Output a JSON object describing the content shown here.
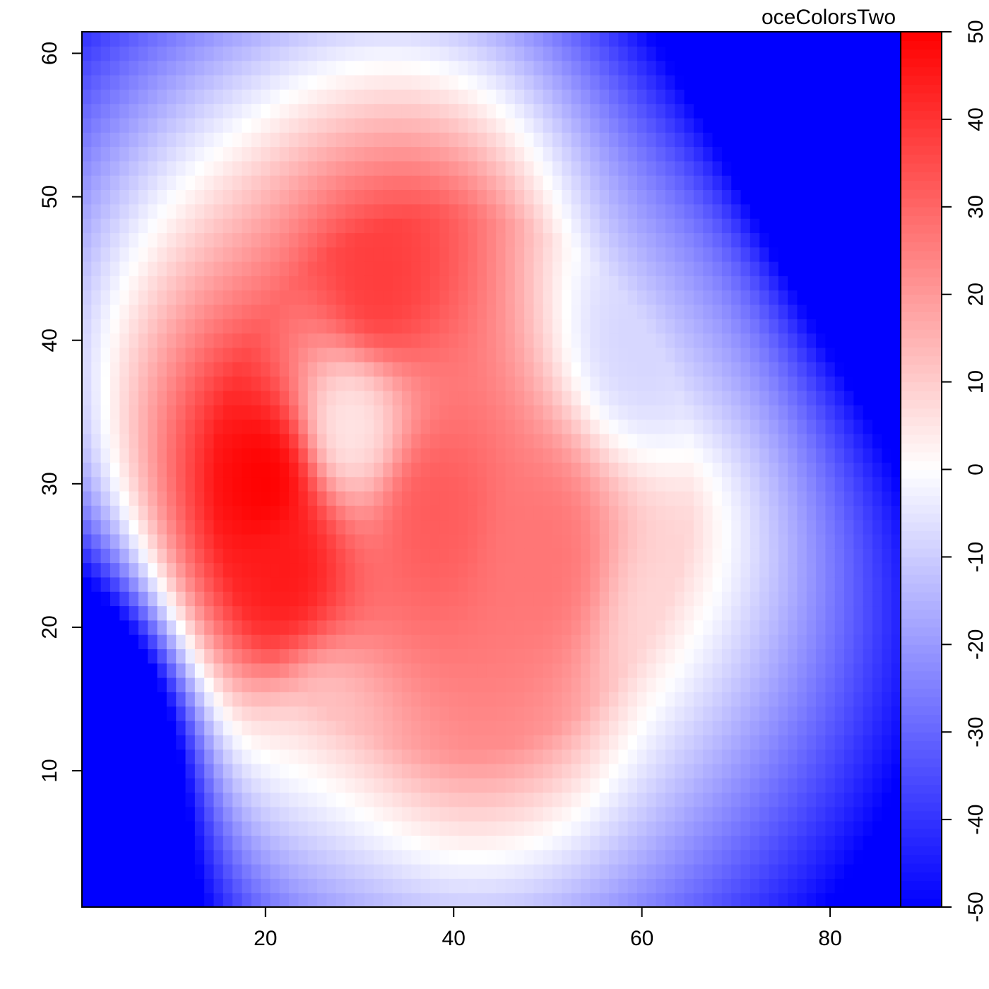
{
  "chart_data": {
    "type": "heatmap",
    "title": "oceColorsTwo",
    "xlabel": "",
    "ylabel": "",
    "xlim": [
      0.5,
      87.5
    ],
    "ylim": [
      0.5,
      61.5
    ],
    "x_ticks": [
      20,
      40,
      60,
      80
    ],
    "y_ticks": [
      10,
      20,
      30,
      40,
      50,
      60
    ],
    "colorbar": {
      "zlim": [
        -50,
        50
      ],
      "ticks": [
        -50,
        -40,
        -30,
        -20,
        -10,
        0,
        10,
        20,
        30,
        40,
        50
      ],
      "colors": [
        "#0000ff",
        "#ffffff",
        "#ff0000"
      ]
    },
    "grid": false,
    "grid_shape": [
      87,
      61
    ],
    "field_features": [
      {
        "kind": "peak",
        "x": 20,
        "y": 30,
        "value": 50
      },
      {
        "kind": "peak",
        "x": 22,
        "y": 24,
        "value": 45
      },
      {
        "kind": "peak",
        "x": 32,
        "y": 44,
        "value": 38
      },
      {
        "kind": "peak",
        "x": 38,
        "y": 28,
        "value": 32
      },
      {
        "kind": "peak",
        "x": 49,
        "y": 25,
        "value": 27
      },
      {
        "kind": "peak",
        "x": 26,
        "y": 13,
        "value": 12
      },
      {
        "kind": "trough",
        "x": 29,
        "y": 34,
        "value": 5
      },
      {
        "kind": "shelf",
        "x": 63,
        "y": 20,
        "value": 8
      },
      {
        "kind": "shelf",
        "x": 60,
        "y": 40,
        "value": -8
      },
      {
        "kind": "corner",
        "x": 85,
        "y": 57,
        "value": -50
      },
      {
        "kind": "corner",
        "x": 2,
        "y": 12,
        "value": -48
      }
    ]
  }
}
